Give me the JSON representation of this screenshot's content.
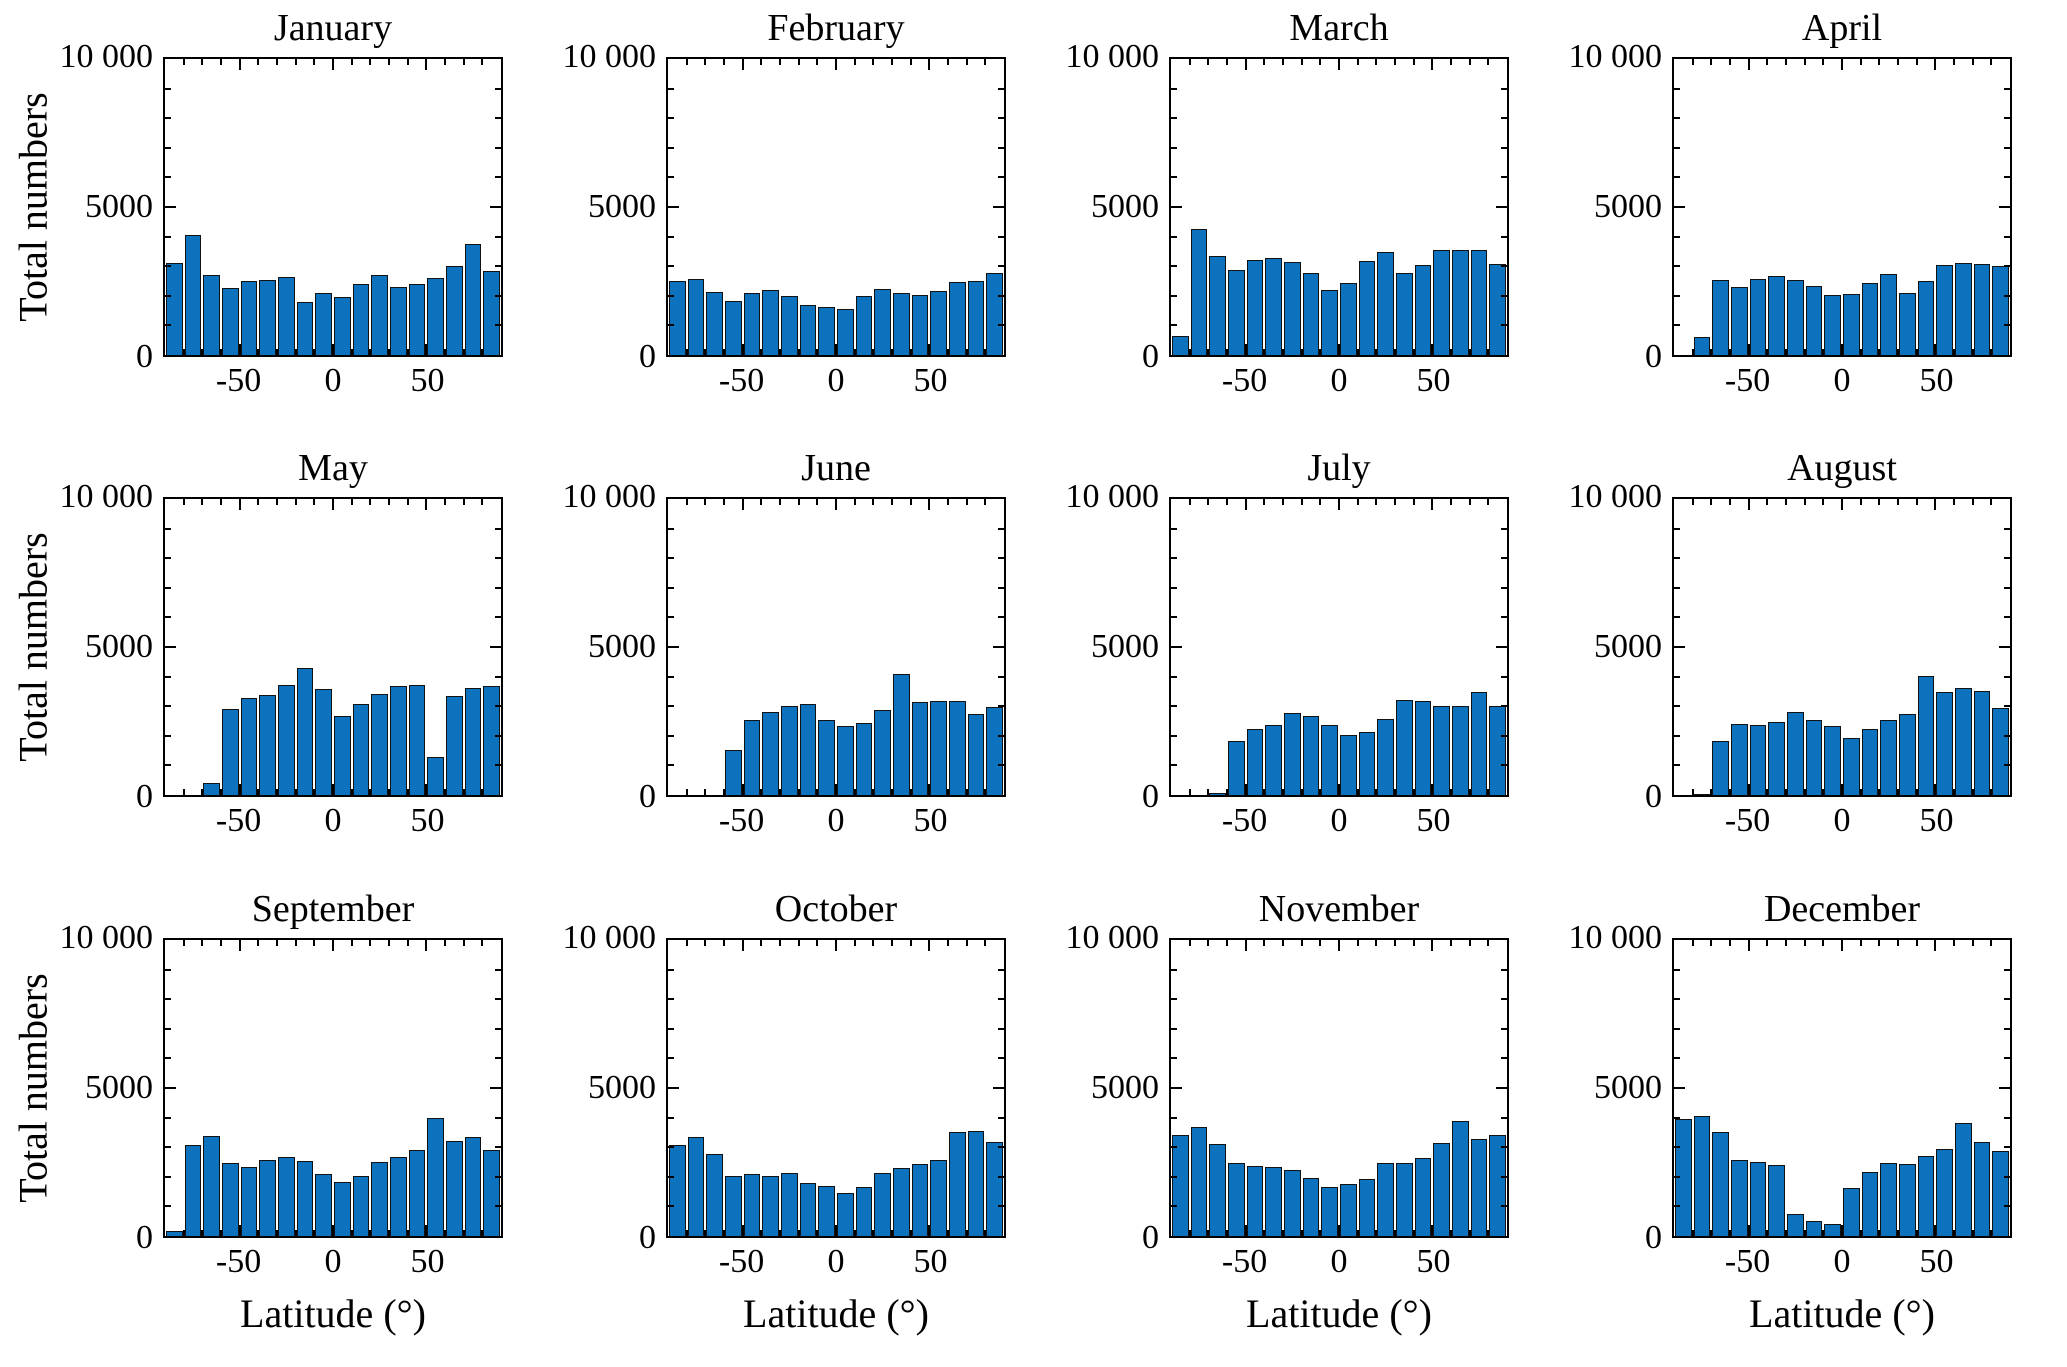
{
  "figure": {
    "ylabel": "Total numbers",
    "xlabel": "Latitude (°)",
    "y_tick_labels": [
      "0",
      "5000",
      "10 000"
    ],
    "x_tick_labels": [
      "-50",
      "0",
      "50"
    ],
    "bar_fill": "#0D72BD",
    "bar_edge": "#121212"
  },
  "chart_data": {
    "type": "bar",
    "layout": "3x4 grid of monthly latitude histograms",
    "title": "",
    "xlabel": "Latitude (°)",
    "ylabel": "Total numbers",
    "xlim": [
      -90,
      90
    ],
    "ylim": [
      0,
      10000
    ],
    "x_tick_values": [
      -50,
      0,
      50
    ],
    "y_tick_values": [
      0,
      5000,
      10000
    ],
    "y_minor_tick_step": 1000,
    "x_minor_tick_step": 10,
    "bin_width_deg": 10,
    "bin_edges_deg": [
      -90,
      -80,
      -70,
      -60,
      -50,
      -40,
      -30,
      -20,
      -10,
      0,
      10,
      20,
      30,
      40,
      50,
      60,
      70,
      80,
      90
    ],
    "grid": false,
    "months": [
      {
        "name": "January",
        "values": [
          3100,
          4050,
          2700,
          2250,
          2500,
          2550,
          2650,
          1800,
          2100,
          1950,
          2400,
          2700,
          2300,
          2400,
          2600,
          3000,
          3750,
          2850
        ]
      },
      {
        "name": "February",
        "values": [
          2500,
          2580,
          2130,
          1830,
          2110,
          2190,
          2000,
          1690,
          1610,
          1560,
          1980,
          2240,
          2080,
          2020,
          2170,
          2470,
          2500,
          2780
        ]
      },
      {
        "name": "March",
        "values": [
          630,
          4250,
          3360,
          2870,
          3220,
          3280,
          3140,
          2760,
          2190,
          2440,
          3170,
          3480,
          2780,
          3030,
          3560,
          3560,
          3560,
          3060
        ]
      },
      {
        "name": "April",
        "values": [
          0,
          610,
          2520,
          2310,
          2560,
          2670,
          2520,
          2330,
          2020,
          2060,
          2420,
          2740,
          2090,
          2500,
          3030,
          3110,
          3060,
          3000
        ]
      },
      {
        "name": "May",
        "values": [
          0,
          0,
          410,
          2910,
          3270,
          3380,
          3710,
          4300,
          3580,
          2660,
          3080,
          3410,
          3690,
          3720,
          1280,
          3360,
          3600,
          3670
        ]
      },
      {
        "name": "June",
        "values": [
          0,
          0,
          0,
          1520,
          2520,
          2800,
          3020,
          3080,
          2540,
          2330,
          2440,
          2880,
          4100,
          3130,
          3160,
          3190,
          2740,
          2970
        ]
      },
      {
        "name": "July",
        "values": [
          0,
          0,
          60,
          1820,
          2240,
          2380,
          2770,
          2660,
          2360,
          2040,
          2130,
          2580,
          3210,
          3180,
          3020,
          3000,
          3470,
          3020
        ]
      },
      {
        "name": "August",
        "values": [
          0,
          50,
          1820,
          2410,
          2360,
          2470,
          2800,
          2540,
          2330,
          1930,
          2220,
          2520,
          2740,
          4020,
          3490,
          3630,
          3500,
          2930
        ]
      },
      {
        "name": "September",
        "values": [
          170,
          3080,
          3380,
          2470,
          2320,
          2580,
          2660,
          2520,
          2110,
          1820,
          2020,
          2490,
          2660,
          2910,
          3990,
          3220,
          3330,
          2910
        ]
      },
      {
        "name": "October",
        "values": [
          3070,
          3350,
          2760,
          2040,
          2090,
          2040,
          2120,
          1790,
          1680,
          1450,
          1640,
          2120,
          2290,
          2420,
          2570,
          3500,
          3540,
          3160
        ]
      },
      {
        "name": "November",
        "values": [
          3400,
          3680,
          3120,
          2480,
          2370,
          2340,
          2220,
          1960,
          1670,
          1750,
          1920,
          2450,
          2470,
          2650,
          3150,
          3880,
          3280,
          3410
        ]
      },
      {
        "name": "December",
        "values": [
          3970,
          4050,
          3520,
          2570,
          2490,
          2410,
          730,
          500,
          390,
          1630,
          2150,
          2460,
          2430,
          2690,
          2940,
          3810,
          3180,
          2880
        ]
      }
    ]
  }
}
